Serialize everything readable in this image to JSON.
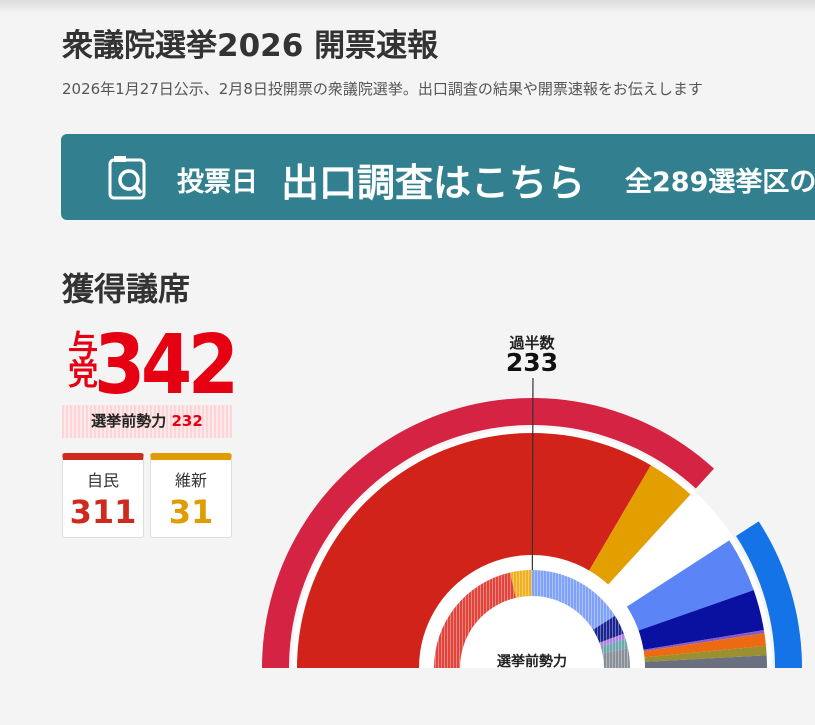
{
  "header": {
    "title": "衆議院選挙2026 開票速報",
    "subtitle": "2026年1月27日公示、2月8日投開票の衆議院選挙。出口調査の結果や開票速報をお伝えします"
  },
  "banner": {
    "label": "投票日",
    "link": "出口調査はこちら",
    "extra": "全289選挙区の"
  },
  "seats": {
    "title": "獲得議席",
    "ruling_label": "与党",
    "ruling_total": 342,
    "pre_label": "選挙前勢力",
    "pre_total": 232,
    "parties": [
      {
        "name": "自民",
        "seats": 311,
        "color": "#cf2a1e"
      },
      {
        "name": "維新",
        "seats": 31,
        "color": "#e09c00"
      }
    ]
  },
  "chart_data": {
    "type": "semidonut",
    "center_label": "選挙前勢力",
    "marker": {
      "label": "過半数",
      "value": 233
    },
    "rings": [
      {
        "values": [
          342,
          38,
          85
        ],
        "colors": [
          "#d42343",
          null,
          "#1473e6"
        ]
      },
      {
        "values": [
          311,
          31,
          38,
          35,
          26,
          2,
          8,
          6,
          8
        ],
        "colors": [
          "#d2231a",
          "#e39e00",
          null,
          "#5b84f6",
          "#0a10a0",
          "#8a5ac8",
          "#ec6b12",
          "#9a9030",
          "#6a7080"
        ]
      },
      {
        "values": [
          199,
          33,
          150,
          30,
          8,
          15,
          30
        ],
        "colors": [
          "#e0443a",
          "#f0b020",
          "#7fa2f8",
          "#1a2590",
          "#b080e0",
          "#70a8b0",
          "#8a9098"
        ]
      }
    ]
  }
}
